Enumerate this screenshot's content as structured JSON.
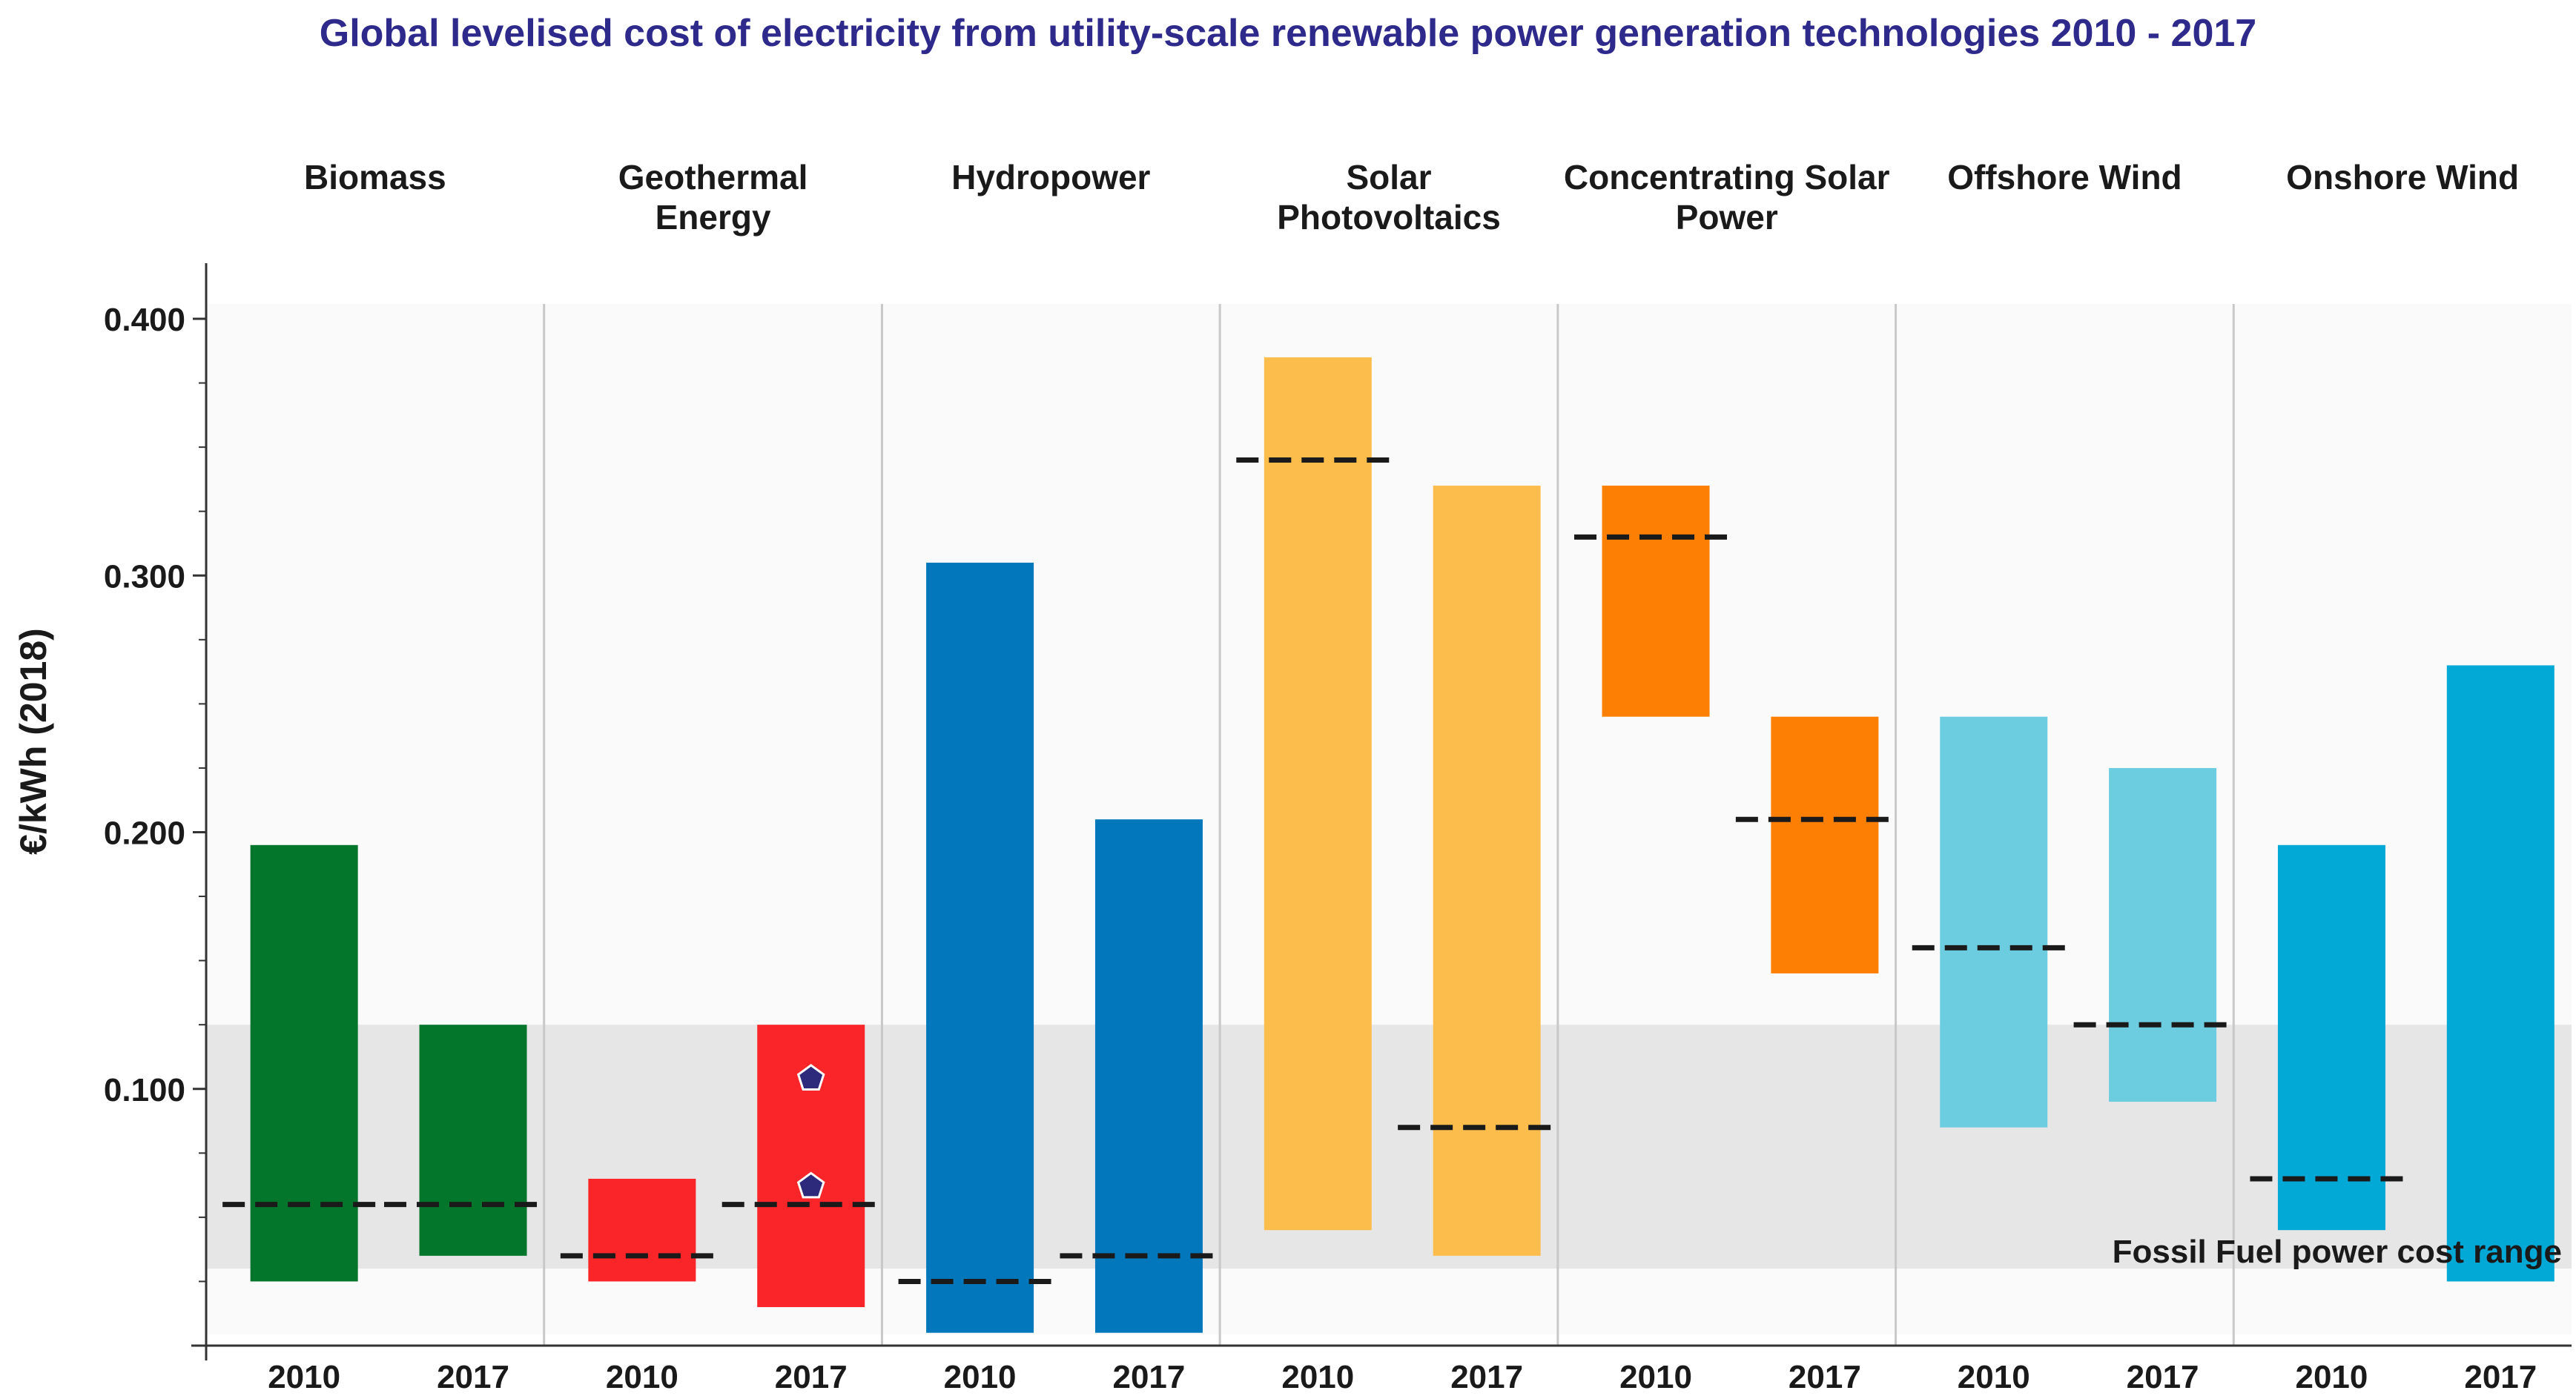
{
  "chart_data": {
    "type": "range-bar",
    "title": "Global levelised cost of electricity from utility-scale renewable power generation technologies 2010 - 2017",
    "ylabel": "€/kWh (2018)",
    "ylim": [
      0,
      0.4
    ],
    "yticks": [
      {
        "value": 0.1,
        "label": "0.100"
      },
      {
        "value": 0.2,
        "label": "0.200"
      },
      {
        "value": 0.3,
        "label": "0.300"
      },
      {
        "value": 0.4,
        "label": "0.400"
      }
    ],
    "fossil_band": {
      "low": 0.03,
      "high": 0.125,
      "label": "Fossil Fuel power cost range",
      "color": "#e6e6e6"
    },
    "groups": [
      {
        "name_lines": [
          "Biomass"
        ],
        "color": "#04762c",
        "bars": [
          {
            "year": "2010",
            "low": 0.025,
            "high": 0.195,
            "avg": 0.055
          },
          {
            "year": "2017",
            "low": 0.035,
            "high": 0.125,
            "avg": 0.055
          }
        ]
      },
      {
        "name_lines": [
          "Geothermal",
          "Energy"
        ],
        "color": "#fa2529",
        "bars": [
          {
            "year": "2010",
            "low": 0.025,
            "high": 0.065,
            "avg": 0.035
          },
          {
            "year": "2017",
            "low": 0.015,
            "high": 0.125,
            "avg": 0.055,
            "markers": [
              0.104,
              0.062
            ]
          }
        ]
      },
      {
        "name_lines": [
          "Hydropower"
        ],
        "color": "#0277bb",
        "bars": [
          {
            "year": "2010",
            "low": 0.005,
            "high": 0.305,
            "avg": 0.025
          },
          {
            "year": "2017",
            "low": 0.005,
            "high": 0.205,
            "avg": 0.035
          }
        ]
      },
      {
        "name_lines": [
          "Solar",
          "Photovoltaics"
        ],
        "color": "#fdbd4d",
        "bars": [
          {
            "year": "2010",
            "low": 0.045,
            "high": 0.385,
            "avg": 0.345
          },
          {
            "year": "2017",
            "low": 0.035,
            "high": 0.335,
            "avg": 0.085
          }
        ]
      },
      {
        "name_lines": [
          "Concentrating Solar",
          "Power"
        ],
        "color": "#fd7f03",
        "bars": [
          {
            "year": "2010",
            "low": 0.245,
            "high": 0.335,
            "avg": 0.315
          },
          {
            "year": "2017",
            "low": 0.145,
            "high": 0.245,
            "avg": 0.205
          }
        ]
      },
      {
        "name_lines": [
          "Offshore Wind"
        ],
        "color": "#6dcde0",
        "bars": [
          {
            "year": "2010",
            "low": 0.085,
            "high": 0.245,
            "avg": 0.155
          },
          {
            "year": "2017",
            "low": 0.095,
            "high": 0.225,
            "avg": 0.125
          }
        ]
      },
      {
        "name_lines": [
          "Onshore Wind"
        ],
        "color": "#02a8d6",
        "bars": [
          {
            "year": "2010",
            "low": 0.045,
            "high": 0.195,
            "avg": 0.065
          },
          {
            "year": "2017",
            "low": 0.025,
            "high": 0.265,
            "avg": null
          }
        ]
      }
    ]
  }
}
